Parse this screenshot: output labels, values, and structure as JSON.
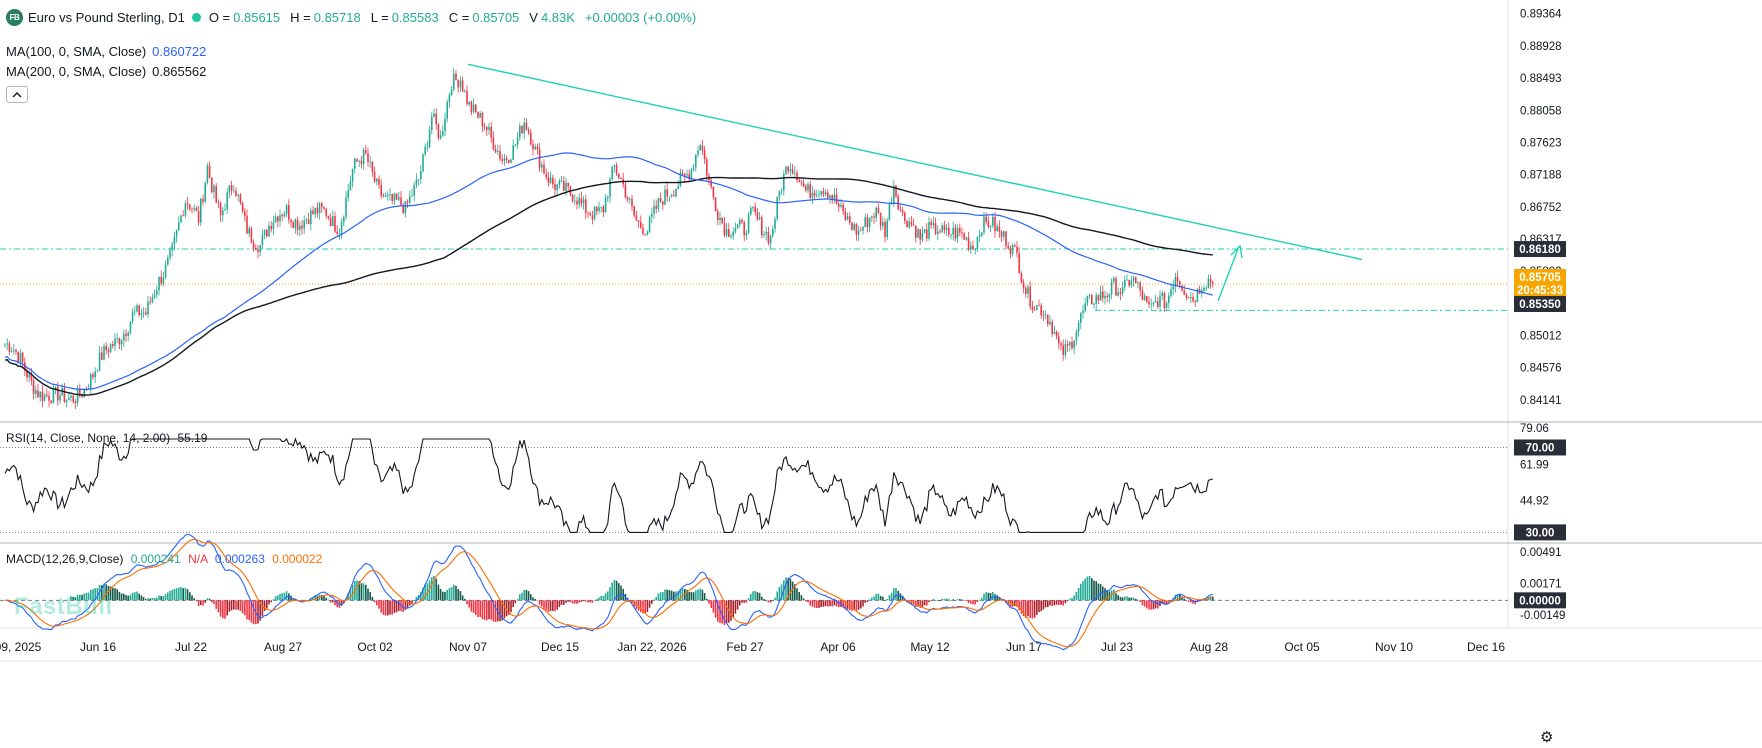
{
  "header": {
    "symbol_badge": "FB",
    "title": "Euro vs Pound Sterling, D1",
    "o_label": "O =",
    "o_value": "0.85615",
    "h_label": "H =",
    "h_value": "0.85718",
    "l_label": "L =",
    "l_value": "0.85583",
    "c_label": "C =",
    "c_value": "0.85705",
    "v_label": "V",
    "v_value": "4.83K",
    "change": "+0.00003 (+0.00%)"
  },
  "indicators": {
    "ma100": {
      "label": "MA(100, 0, SMA, Close)",
      "value": "0.860722",
      "color": "#2962ff"
    },
    "ma200": {
      "label": "MA(200, 0, SMA, Close)",
      "value": "0.865562",
      "color": "#131722"
    }
  },
  "rsi": {
    "label": "RSI(14, Close, None, 14, 2.00)",
    "value": "55.19"
  },
  "macd": {
    "label": "MACD(12,26,9,Close)",
    "macd_value": "0.000241",
    "na": "N/A",
    "signal_value": "0.000263",
    "hist_value": "0.000022"
  },
  "watermark": "FastBull",
  "settings_icon": "gear-icon",
  "colors": {
    "up": "#22ab94",
    "down": "#f23645",
    "trend": "#1fd3b5",
    "ma100": "#2962ff",
    "ma200": "#131722"
  },
  "chart_data": [
    {
      "type": "candlestick",
      "title": "Euro vs Pound Sterling, D1",
      "x_ticks": [
        "09, 2025",
        "Jun 16",
        "Jul 22",
        "Aug 27",
        "Oct 02",
        "Nov 07",
        "Dec 15",
        "Jan 22, 2026",
        "Feb 27",
        "Apr 06",
        "May 12",
        "Jun 17",
        "Jul 23",
        "Aug 28",
        "Oct 05",
        "Nov 10",
        "Dec 16"
      ],
      "y_ticks": [
        "0.89364",
        "0.88928",
        "0.88493",
        "0.88058",
        "0.87623",
        "0.87188",
        "0.86752",
        "0.86317",
        "0.85882",
        "0.85447",
        "0.85012",
        "0.84576",
        "0.84141"
      ],
      "ylim": [
        0.8384,
        0.8955
      ],
      "price_labels": [
        {
          "text": "0.86180",
          "value": 0.8618
        },
        {
          "text": "0.85705",
          "value": 0.85705
        },
        {
          "text": "20:45:33",
          "value": 0.8555
        },
        {
          "text": "0.85350",
          "value": 0.8535
        }
      ],
      "horizontal_levels": [
        0.8618,
        0.8535
      ],
      "trendline": {
        "from": [
          "Nov 07",
          0.8868
        ],
        "to": [
          "Oct 05",
          0.8604
        ]
      },
      "arrow": {
        "from": [
          "Aug 28",
          0.8542
        ],
        "to": [
          "Sep 10",
          0.8617
        ]
      },
      "keypoints": [
        [
          0,
          0.849
        ],
        [
          5,
          0.847
        ],
        [
          10,
          0.845
        ],
        [
          15,
          0.8432
        ],
        [
          22,
          0.8413
        ],
        [
          28,
          0.8412
        ],
        [
          34,
          0.843
        ],
        [
          40,
          0.8445
        ],
        [
          46,
          0.8475
        ],
        [
          52,
          0.8505
        ],
        [
          58,
          0.853
        ],
        [
          64,
          0.8522
        ],
        [
          70,
          0.858
        ],
        [
          76,
          0.862
        ],
        [
          82,
          0.8675
        ],
        [
          88,
          0.866
        ],
        [
          92,
          0.8738
        ],
        [
          98,
          0.866
        ],
        [
          104,
          0.87
        ],
        [
          110,
          0.8652
        ],
        [
          116,
          0.8625
        ],
        [
          122,
          0.865
        ],
        [
          128,
          0.8675
        ],
        [
          134,
          0.8658
        ],
        [
          140,
          0.8658
        ],
        [
          146,
          0.8668
        ],
        [
          152,
          0.8655
        ],
        [
          158,
          0.872
        ],
        [
          164,
          0.874
        ],
        [
          170,
          0.8705
        ],
        [
          176,
          0.868
        ],
        [
          182,
          0.8665
        ],
        [
          188,
          0.872
        ],
        [
          194,
          0.88
        ],
        [
          198,
          0.876
        ],
        [
          203,
          0.884
        ],
        [
          207,
          0.8855
        ],
        [
          211,
          0.882
        ],
        [
          216,
          0.879
        ],
        [
          221,
          0.876
        ],
        [
          226,
          0.8745
        ],
        [
          231,
          0.876
        ],
        [
          236,
          0.8785
        ],
        [
          241,
          0.8745
        ],
        [
          246,
          0.8725
        ],
        [
          252,
          0.8705
        ],
        [
          257,
          0.8685
        ],
        [
          262,
          0.8675
        ],
        [
          267,
          0.8675
        ],
        [
          272,
          0.8675
        ],
        [
          277,
          0.872
        ],
        [
          282,
          0.8695
        ],
        [
          287,
          0.8665
        ],
        [
          292,
          0.8645
        ],
        [
          297,
          0.867
        ],
        [
          302,
          0.8695
        ],
        [
          307,
          0.872
        ],
        [
          312,
          0.8725
        ],
        [
          316,
          0.8755
        ],
        [
          320,
          0.8705
        ],
        [
          324,
          0.8675
        ],
        [
          328,
          0.865
        ],
        [
          332,
          0.8645
        ],
        [
          336,
          0.8635
        ],
        [
          340,
          0.8665
        ],
        [
          344,
          0.8655
        ],
        [
          348,
          0.864
        ],
        [
          352,
          0.869
        ],
        [
          356,
          0.8725
        ],
        [
          360,
          0.872
        ],
        [
          364,
          0.8705
        ],
        [
          368,
          0.8705
        ],
        [
          372,
          0.8695
        ],
        [
          376,
          0.868
        ],
        [
          380,
          0.867
        ],
        [
          384,
          0.8663
        ],
        [
          388,
          0.8645
        ],
        [
          392,
          0.865
        ],
        [
          396,
          0.866
        ],
        [
          400,
          0.8645
        ],
        [
          404,
          0.8715
        ],
        [
          408,
          0.8665
        ],
        [
          412,
          0.8645
        ],
        [
          416,
          0.8625
        ],
        [
          420,
          0.8648
        ],
        [
          424,
          0.8655
        ],
        [
          428,
          0.864
        ],
        [
          432,
          0.8632
        ],
        [
          436,
          0.8628
        ],
        [
          440,
          0.8625
        ],
        [
          444,
          0.866
        ],
        [
          448,
          0.8655
        ],
        [
          452,
          0.863
        ],
        [
          456,
          0.8622
        ],
        [
          460,
          0.8615
        ],
        [
          464,
          0.857
        ],
        [
          468,
          0.854
        ],
        [
          472,
          0.8525
        ],
        [
          476,
          0.851
        ],
        [
          480,
          0.8485
        ],
        [
          484,
          0.8495
        ],
        [
          488,
          0.8515
        ],
        [
          492,
          0.8535
        ],
        [
          496,
          0.855
        ],
        [
          500,
          0.8565
        ],
        [
          504,
          0.8575
        ],
        [
          508,
          0.8555
        ],
        [
          512,
          0.857
        ],
        [
          516,
          0.856
        ],
        [
          520,
          0.8545
        ],
        [
          524,
          0.8555
        ],
        [
          528,
          0.854
        ],
        [
          532,
          0.8575
        ],
        [
          536,
          0.8565
        ],
        [
          540,
          0.856
        ],
        [
          544,
          0.8575
        ],
        [
          548,
          0.857
        ]
      ]
    },
    {
      "type": "line",
      "title": "RSI(14, Close, None, 14, 2.00)",
      "y_ticks": [
        "79.06",
        "61.99",
        "44.92"
      ],
      "ylim": [
        25,
        82
      ],
      "levels": [
        {
          "text": "70.00",
          "value": 70
        },
        {
          "text": "30.00",
          "value": 30
        }
      ],
      "series": [
        {
          "name": "RSI",
          "last": 55.19
        }
      ]
    },
    {
      "type": "line+histogram",
      "title": "MACD(12,26,9,Close)",
      "y_ticks": [
        "0.00491",
        "0.00171",
        "-0.00149"
      ],
      "zero_label": "0.00000",
      "ylim": [
        -0.0028,
        0.0058
      ],
      "series": [
        {
          "name": "MACD",
          "last": 0.000241
        },
        {
          "name": "Signal",
          "last": 0.000263
        },
        {
          "name": "Histogram",
          "last": 2.2e-05
        }
      ]
    }
  ]
}
